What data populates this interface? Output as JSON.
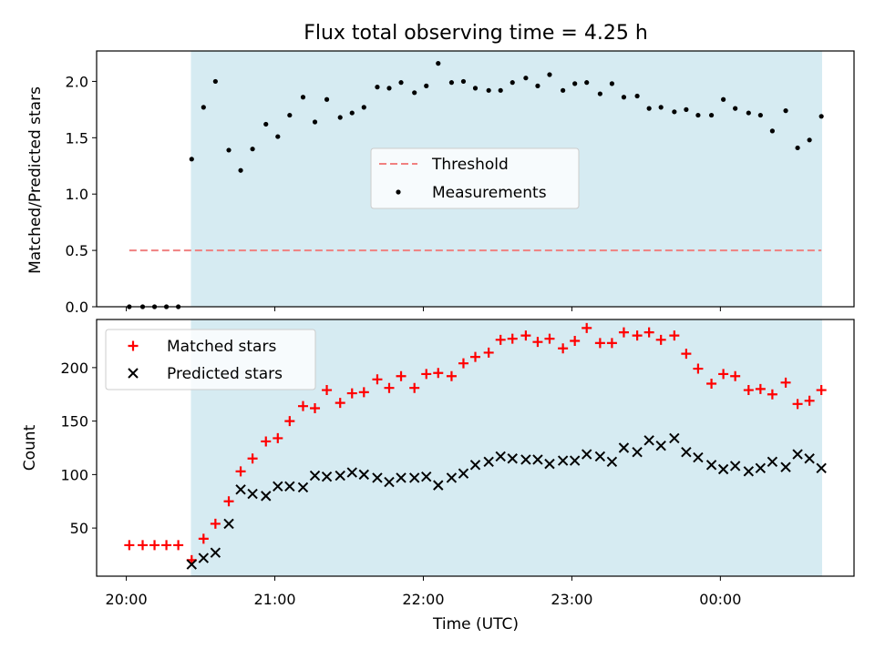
{
  "title": "Flux total observing time = 4.25 h",
  "colors": {
    "band": "#add8e6",
    "threshold": "#f08080",
    "matched": "#ff0000",
    "predicted": "#000000",
    "measurements": "#000000"
  },
  "chart_data": [
    {
      "type": "scatter",
      "panel": "top",
      "xlabel": "",
      "ylabel": "Matched/Predicted stars",
      "ylim": [
        0,
        2.27
      ],
      "yticks": [
        "0.0",
        "0.5",
        "1.0",
        "1.5",
        "2.0"
      ],
      "xticks": [
        "20:00",
        "21:00",
        "22:00",
        "23:00",
        "00:00"
      ],
      "x_unit": "hours since 20:00 UTC",
      "xlim": [
        -0.2,
        4.9
      ],
      "shaded_span": [
        0.435,
        4.685
      ],
      "legend_placement": "center",
      "threshold": {
        "name": "Threshold",
        "value": 0.5,
        "x_range": [
          0.02,
          4.68
        ]
      },
      "series": [
        {
          "name": "Measurements",
          "marker": "dot",
          "x": [
            0.02,
            0.11,
            0.19,
            0.27,
            0.35,
            0.44,
            0.52,
            0.6,
            0.69,
            0.77,
            0.85,
            0.94,
            1.02,
            1.1,
            1.19,
            1.27,
            1.35,
            1.44,
            1.52,
            1.6,
            1.69,
            1.77,
            1.85,
            1.94,
            2.02,
            2.1,
            2.19,
            2.27,
            2.35,
            2.44,
            2.52,
            2.6,
            2.69,
            2.77,
            2.85,
            2.94,
            3.02,
            3.1,
            3.19,
            3.27,
            3.35,
            3.44,
            3.52,
            3.6,
            3.69,
            3.77,
            3.85,
            3.94,
            4.02,
            4.1,
            4.19,
            4.27,
            4.35,
            4.44,
            4.52,
            4.6,
            4.68
          ],
          "y": [
            0.0,
            0.0,
            0.0,
            0.0,
            0.0,
            1.31,
            1.77,
            2.0,
            1.39,
            1.21,
            1.4,
            1.62,
            1.51,
            1.7,
            1.86,
            1.64,
            1.84,
            1.68,
            1.72,
            1.77,
            1.95,
            1.94,
            1.99,
            1.9,
            1.96,
            2.16,
            1.99,
            2.0,
            1.94,
            1.92,
            1.92,
            1.99,
            2.03,
            1.96,
            2.06,
            1.92,
            1.98,
            1.99,
            1.89,
            1.98,
            1.86,
            1.87,
            1.76,
            1.77,
            1.73,
            1.75,
            1.7,
            1.7,
            1.84,
            1.76,
            1.72,
            1.7,
            1.56,
            1.74,
            1.41,
            1.48,
            1.69
          ]
        }
      ]
    },
    {
      "type": "scatter",
      "panel": "bottom",
      "xlabel": "Time (UTC)",
      "ylabel": "Count",
      "ylim": [
        5,
        245
      ],
      "yticks": [
        "50",
        "100",
        "150",
        "200"
      ],
      "xticks": [
        "20:00",
        "21:00",
        "22:00",
        "23:00",
        "00:00"
      ],
      "x_unit": "hours since 20:00 UTC",
      "xlim": [
        -0.2,
        4.9
      ],
      "shaded_span": [
        0.435,
        4.685
      ],
      "legend_placement": "upper left",
      "series": [
        {
          "name": "Matched stars",
          "marker": "plus",
          "x": [
            0.02,
            0.11,
            0.19,
            0.27,
            0.35,
            0.44,
            0.52,
            0.6,
            0.69,
            0.77,
            0.85,
            0.94,
            1.02,
            1.1,
            1.19,
            1.27,
            1.35,
            1.44,
            1.52,
            1.6,
            1.69,
            1.77,
            1.85,
            1.94,
            2.02,
            2.1,
            2.19,
            2.27,
            2.35,
            2.44,
            2.52,
            2.6,
            2.69,
            2.77,
            2.85,
            2.94,
            3.02,
            3.1,
            3.19,
            3.27,
            3.35,
            3.44,
            3.52,
            3.6,
            3.69,
            3.77,
            3.85,
            3.94,
            4.02,
            4.1,
            4.19,
            4.27,
            4.35,
            4.44,
            4.52,
            4.6,
            4.68
          ],
          "y": [
            34,
            34,
            34,
            34,
            34,
            20,
            40,
            54,
            75,
            103,
            115,
            131,
            134,
            150,
            164,
            162,
            179,
            167,
            176,
            177,
            189,
            181,
            192,
            181,
            194,
            195,
            192,
            204,
            210,
            214,
            226,
            227,
            230,
            224,
            227,
            218,
            225,
            237,
            223,
            223,
            233,
            230,
            233,
            226,
            230,
            213,
            199,
            185,
            194,
            192,
            179,
            180,
            175,
            186,
            166,
            169,
            179
          ]
        },
        {
          "name": "Predicted stars",
          "marker": "x",
          "x": [
            0.44,
            0.52,
            0.6,
            0.69,
            0.77,
            0.85,
            0.94,
            1.02,
            1.1,
            1.19,
            1.27,
            1.35,
            1.44,
            1.52,
            1.6,
            1.69,
            1.77,
            1.85,
            1.94,
            2.02,
            2.1,
            2.19,
            2.27,
            2.35,
            2.44,
            2.52,
            2.6,
            2.69,
            2.77,
            2.85,
            2.94,
            3.02,
            3.1,
            3.19,
            3.27,
            3.35,
            3.44,
            3.52,
            3.6,
            3.69,
            3.77,
            3.85,
            3.94,
            4.02,
            4.1,
            4.19,
            4.27,
            4.35,
            4.44,
            4.52,
            4.6,
            4.68
          ],
          "y": [
            16,
            22,
            27,
            54,
            86,
            82,
            80,
            89,
            89,
            88,
            99,
            98,
            99,
            102,
            100,
            97,
            93,
            97,
            97,
            98,
            90,
            97,
            101,
            109,
            112,
            117,
            115,
            114,
            114,
            110,
            113,
            113,
            119,
            117,
            112,
            125,
            121,
            132,
            127,
            134,
            121,
            116,
            109,
            105,
            108,
            103,
            106,
            112,
            107,
            119,
            115,
            106
          ]
        }
      ]
    }
  ]
}
